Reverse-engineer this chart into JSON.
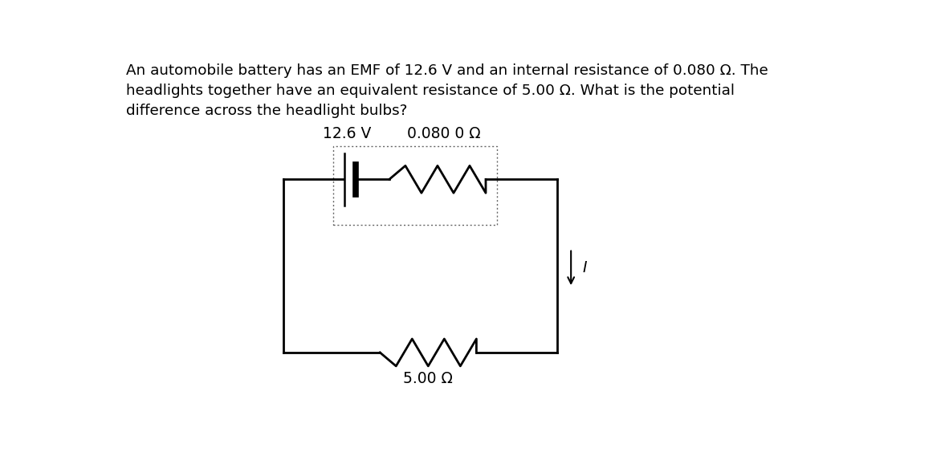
{
  "title_text": "An automobile battery has an EMF of 12.6 V and an internal resistance of 0.080 Ω. The\nheadlights together have an equivalent resistance of 5.00 Ω. What is the potential\ndifference across the headlight bulbs?",
  "label_emf": "12.6 V",
  "label_r_internal": "0.080 0 Ω",
  "label_r_load": "5.00 Ω",
  "label_current": "I",
  "bg_color": "#ffffff",
  "text_color": "#000000",
  "circuit_color": "#000000"
}
